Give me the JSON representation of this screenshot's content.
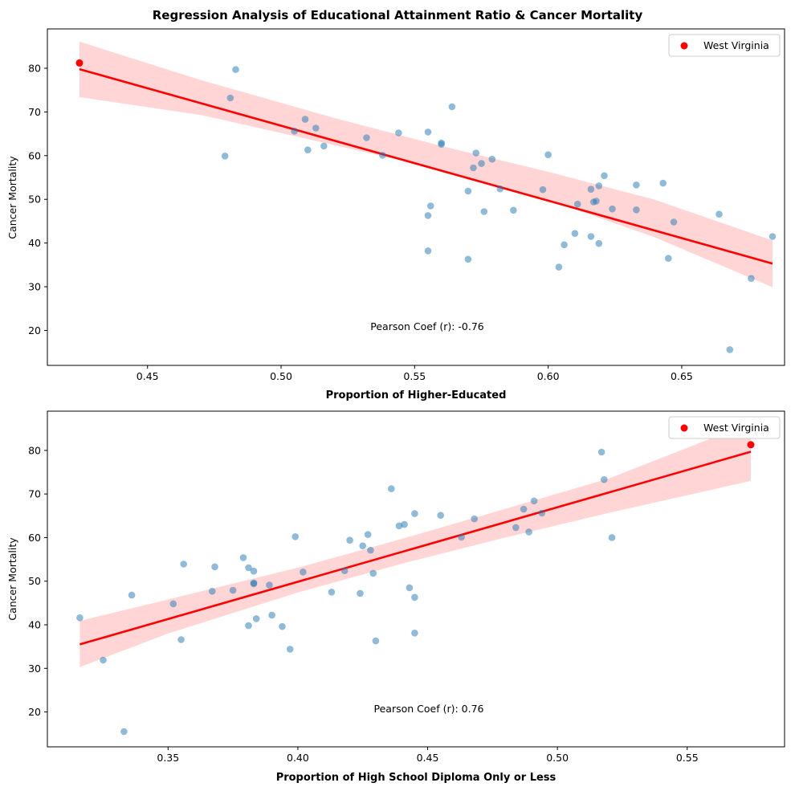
{
  "figure": {
    "title": "Regression Analysis of Educational Attainment Ratio & Cancer Mortality"
  },
  "chart_data": [
    {
      "type": "scatter",
      "xlabel": "Proportion of Higher-Educated",
      "ylabel": "Cancer Mortality",
      "xlim": [
        0.4125,
        0.6885
      ],
      "ylim": [
        12,
        89
      ],
      "xticks": [
        0.45,
        0.5,
        0.55,
        0.6,
        0.65
      ],
      "xtick_labels": [
        "0.45",
        "0.50",
        "0.55",
        "0.60",
        "0.65"
      ],
      "yticks": [
        20,
        30,
        40,
        50,
        60,
        70,
        80
      ],
      "ytick_labels": [
        "20",
        "30",
        "40",
        "50",
        "60",
        "70",
        "80"
      ],
      "annotation": "Pearson Coef (r): -0.76",
      "legend": {
        "entries": [
          "West Virginia"
        ],
        "placement": "upper right"
      },
      "colors": {
        "points": "#1f77b4",
        "highlight": "#ff0000",
        "fit_line": "#ff0000",
        "confidence_band": "#ffb3b3"
      },
      "points": [
        [
          0.483,
          79.7
        ],
        [
          0.481,
          73.2
        ],
        [
          0.479,
          59.9
        ],
        [
          0.509,
          68.3
        ],
        [
          0.513,
          66.3
        ],
        [
          0.505,
          65.6
        ],
        [
          0.51,
          61.3
        ],
        [
          0.516,
          62.2
        ],
        [
          0.532,
          64.1
        ],
        [
          0.538,
          60.1
        ],
        [
          0.544,
          65.2
        ],
        [
          0.555,
          65.4
        ],
        [
          0.564,
          71.2
        ],
        [
          0.56,
          62.9
        ],
        [
          0.56,
          62.6
        ],
        [
          0.573,
          60.6
        ],
        [
          0.575,
          58.2
        ],
        [
          0.579,
          59.2
        ],
        [
          0.572,
          57.2
        ],
        [
          0.6,
          60.2
        ],
        [
          0.57,
          51.9
        ],
        [
          0.582,
          52.4
        ],
        [
          0.598,
          52.2
        ],
        [
          0.556,
          48.5
        ],
        [
          0.555,
          46.3
        ],
        [
          0.576,
          47.2
        ],
        [
          0.587,
          47.5
        ],
        [
          0.611,
          48.9
        ],
        [
          0.616,
          52.3
        ],
        [
          0.619,
          53.1
        ],
        [
          0.621,
          55.4
        ],
        [
          0.618,
          49.6
        ],
        [
          0.617,
          49.4
        ],
        [
          0.624,
          47.8
        ],
        [
          0.633,
          53.3
        ],
        [
          0.643,
          53.7
        ],
        [
          0.633,
          47.6
        ],
        [
          0.664,
          46.6
        ],
        [
          0.647,
          44.8
        ],
        [
          0.61,
          42.2
        ],
        [
          0.616,
          41.5
        ],
        [
          0.619,
          39.9
        ],
        [
          0.606,
          39.6
        ],
        [
          0.604,
          34.5
        ],
        [
          0.555,
          38.2
        ],
        [
          0.57,
          36.3
        ],
        [
          0.645,
          36.5
        ],
        [
          0.684,
          41.5
        ],
        [
          0.676,
          31.9
        ],
        [
          0.668,
          15.6
        ]
      ],
      "highlight": [
        0.4245,
        81.2
      ],
      "fit": {
        "x": [
          0.4245,
          0.684
        ],
        "y": [
          79.8,
          35.3
        ]
      },
      "band": {
        "x": [
          0.4245,
          0.47,
          0.52,
          0.56,
          0.6,
          0.64,
          0.684
        ],
        "upper": [
          86.1,
          77.3,
          68.6,
          62.2,
          56.3,
          49.9,
          40.6
        ],
        "lower": [
          73.4,
          69.3,
          62.4,
          56.8,
          49.9,
          41.3,
          29.9
        ]
      }
    },
    {
      "type": "scatter",
      "xlabel": "Proportion of High School Diploma Only or Less",
      "ylabel": "Cancer Mortality",
      "xlim": [
        0.3035,
        0.5875
      ],
      "ylim": [
        12,
        89
      ],
      "xticks": [
        0.35,
        0.4,
        0.45,
        0.5,
        0.55
      ],
      "xtick_labels": [
        "0.35",
        "0.40",
        "0.45",
        "0.50",
        "0.55"
      ],
      "yticks": [
        20,
        30,
        40,
        50,
        60,
        70,
        80
      ],
      "ytick_labels": [
        "20",
        "30",
        "40",
        "50",
        "60",
        "70",
        "80"
      ],
      "annotation": "Pearson Coef (r): 0.76",
      "legend": {
        "entries": [
          "West Virginia"
        ],
        "placement": "upper right"
      },
      "colors": {
        "points": "#1f77b4",
        "highlight": "#ff0000",
        "fit_line": "#ff0000",
        "confidence_band": "#ffb3b3"
      },
      "points": [
        [
          0.517,
          79.6
        ],
        [
          0.518,
          73.3
        ],
        [
          0.521,
          60.0
        ],
        [
          0.491,
          68.4
        ],
        [
          0.487,
          66.5
        ],
        [
          0.494,
          65.6
        ],
        [
          0.489,
          61.3
        ],
        [
          0.484,
          62.3
        ],
        [
          0.468,
          64.3
        ],
        [
          0.463,
          60.1
        ],
        [
          0.455,
          65.1
        ],
        [
          0.445,
          65.5
        ],
        [
          0.436,
          71.2
        ],
        [
          0.441,
          63.0
        ],
        [
          0.439,
          62.7
        ],
        [
          0.427,
          60.7
        ],
        [
          0.425,
          58.1
        ],
        [
          0.42,
          59.4
        ],
        [
          0.428,
          57.1
        ],
        [
          0.399,
          60.2
        ],
        [
          0.429,
          51.8
        ],
        [
          0.418,
          52.4
        ],
        [
          0.402,
          52.1
        ],
        [
          0.443,
          48.5
        ],
        [
          0.445,
          46.3
        ],
        [
          0.424,
          47.2
        ],
        [
          0.413,
          47.5
        ],
        [
          0.389,
          49.1
        ],
        [
          0.383,
          52.3
        ],
        [
          0.381,
          53.1
        ],
        [
          0.379,
          55.4
        ],
        [
          0.383,
          49.6
        ],
        [
          0.383,
          49.4
        ],
        [
          0.375,
          47.9
        ],
        [
          0.368,
          53.3
        ],
        [
          0.356,
          53.9
        ],
        [
          0.367,
          47.7
        ],
        [
          0.336,
          46.8
        ],
        [
          0.352,
          44.8
        ],
        [
          0.39,
          42.2
        ],
        [
          0.384,
          41.4
        ],
        [
          0.381,
          39.8
        ],
        [
          0.394,
          39.6
        ],
        [
          0.397,
          34.4
        ],
        [
          0.445,
          38.1
        ],
        [
          0.43,
          36.3
        ],
        [
          0.355,
          36.6
        ],
        [
          0.316,
          41.6
        ],
        [
          0.325,
          31.9
        ],
        [
          0.333,
          15.5
        ]
      ],
      "highlight": [
        0.5745,
        81.3
      ],
      "fit": {
        "x": [
          0.316,
          0.5745
        ],
        "y": [
          35.5,
          79.7
        ]
      },
      "band": {
        "x": [
          0.316,
          0.35,
          0.4,
          0.44,
          0.48,
          0.52,
          0.5745
        ],
        "upper": [
          40.9,
          45.8,
          53.1,
          59.7,
          66.6,
          73.6,
          86.3
        ],
        "lower": [
          30.3,
          38.0,
          47.4,
          54.0,
          60.0,
          65.7,
          73.0
        ]
      }
    }
  ]
}
